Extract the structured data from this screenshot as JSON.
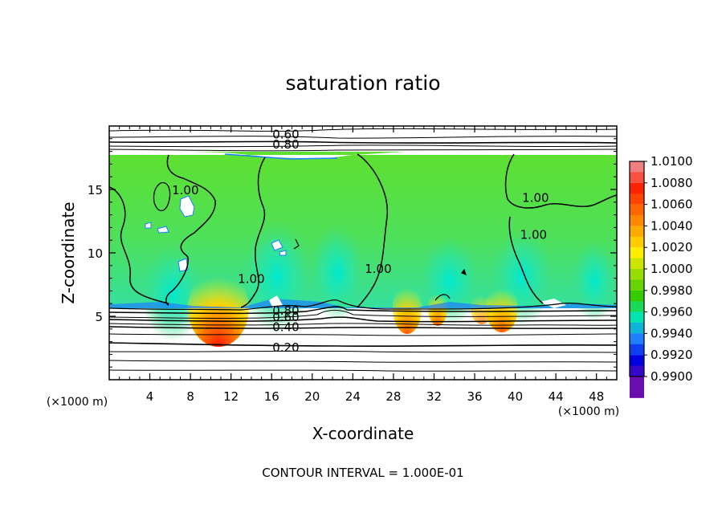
{
  "chart_data": {
    "type": "contour",
    "title": "saturation ratio",
    "xlabel": "X-coordinate",
    "ylabel": "Z-coordinate",
    "x_unit": "(×1000 m)",
    "y_unit": "(×1000 m)",
    "xlim": [
      0,
      50
    ],
    "ylim": [
      0,
      20
    ],
    "x_ticks": [
      4,
      8,
      12,
      16,
      20,
      24,
      28,
      32,
      36,
      40,
      44,
      48
    ],
    "y_ticks": [
      5,
      10,
      15
    ],
    "footer": "CONTOUR INTERVAL = 1.000E-01",
    "colorbar": {
      "labels": [
        "1.0100",
        "1.0080",
        "1.0060",
        "1.0040",
        "1.0020",
        "1.0000",
        "0.9980",
        "0.9960",
        "0.9940",
        "0.9920",
        "0.9900"
      ],
      "colors": [
        "#f08080",
        "#ff2200",
        "#ff6600",
        "#ffaa00",
        "#ffee00",
        "#99dd00",
        "#33cc00",
        "#00e5b0",
        "#1e7fff",
        "#0000e0",
        "#6a0dad"
      ]
    },
    "contour_labels": [
      {
        "text": "0.60",
        "x": 17.4,
        "y": 19.4
      },
      {
        "text": "0.80",
        "x": 17.4,
        "y": 18.6
      },
      {
        "text": "1.00",
        "x": 7.5,
        "y": 15.0
      },
      {
        "text": "1.00",
        "x": 14.0,
        "y": 8.0
      },
      {
        "text": "1.00",
        "x": 26.5,
        "y": 8.8
      },
      {
        "text": "1.00",
        "x": 42.0,
        "y": 14.4
      },
      {
        "text": "1.00",
        "x": 41.8,
        "y": 11.5
      },
      {
        "text": "0.80",
        "x": 17.4,
        "y": 5.5
      },
      {
        "text": "0.60",
        "x": 17.4,
        "y": 5.0
      },
      {
        "text": "0.40",
        "x": 17.4,
        "y": 4.2
      },
      {
        "text": "0.20",
        "x": 17.4,
        "y": 2.6
      }
    ],
    "lines_above_ice_layer_z": [
      18.0,
      18.4,
      18.7,
      19.1,
      19.4,
      19.7
    ],
    "lines_below_cloud_base_z": [
      5.3,
      4.9,
      4.5,
      4.1,
      3.7,
      3.0,
      2.6,
      2.1,
      1.4,
      0.9
    ],
    "field_band_z": [
      5.6,
      18.0
    ]
  }
}
